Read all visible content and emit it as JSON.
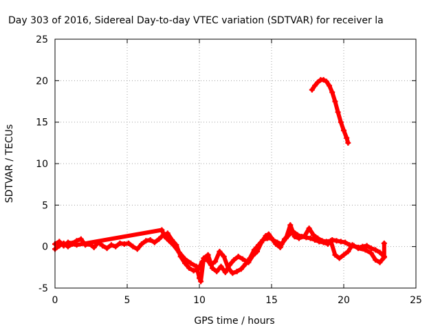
{
  "chart_data": {
    "type": "scatter",
    "title": "Day 303 of 2016, Sidereal Day-to-day VTEC variation (SDTVAR) for receiver la",
    "xlabel": "GPS time / hours",
    "ylabel": "SDTVAR / TECUs",
    "xlim": [
      0,
      25
    ],
    "ylim": [
      -5,
      25
    ],
    "xticks": [
      0,
      5,
      10,
      15,
      20,
      25
    ],
    "yticks": [
      -5,
      0,
      5,
      10,
      15,
      20,
      25
    ],
    "grid": true,
    "marker": "+",
    "series": [
      {
        "name": "main track",
        "color": "#ff0000",
        "points": [
          [
            0.0,
            0.3
          ],
          [
            0.3,
            0.6
          ],
          [
            0.6,
            0.1
          ],
          [
            0.9,
            0.5
          ],
          [
            1.2,
            0.4
          ],
          [
            1.5,
            0.7
          ],
          [
            1.8,
            0.9
          ],
          [
            2.1,
            0.2
          ],
          [
            2.4,
            0.3
          ],
          [
            2.7,
            -0.1
          ],
          [
            3.0,
            0.5
          ],
          [
            3.3,
            0.1
          ],
          [
            3.6,
            -0.2
          ],
          [
            3.9,
            0.2
          ],
          [
            4.2,
            0.0
          ],
          [
            4.5,
            0.4
          ],
          [
            4.8,
            0.3
          ],
          [
            5.1,
            0.4
          ],
          [
            5.4,
            0.0
          ],
          [
            5.7,
            -0.3
          ],
          [
            6.0,
            0.3
          ],
          [
            6.3,
            0.7
          ],
          [
            6.6,
            0.8
          ],
          [
            6.9,
            0.5
          ],
          [
            7.2,
            0.9
          ],
          [
            7.5,
            1.4
          ],
          [
            7.8,
            1.6
          ],
          [
            8.1,
            0.8
          ],
          [
            8.4,
            0.2
          ],
          [
            8.7,
            -1.2
          ],
          [
            9.0,
            -2.0
          ],
          [
            9.3,
            -2.6
          ],
          [
            9.6,
            -2.9
          ],
          [
            9.9,
            -2.8
          ],
          [
            10.2,
            -1.8
          ],
          [
            10.5,
            -1.5
          ],
          [
            10.8,
            -2.2
          ],
          [
            11.1,
            -1.8
          ],
          [
            11.4,
            -0.6
          ],
          [
            11.7,
            -1.2
          ],
          [
            12.0,
            -2.6
          ],
          [
            12.3,
            -3.2
          ],
          [
            12.6,
            -3.0
          ],
          [
            12.9,
            -2.7
          ],
          [
            13.2,
            -2.1
          ],
          [
            13.5,
            -1.4
          ],
          [
            13.8,
            -0.4
          ],
          [
            14.1,
            0.2
          ],
          [
            14.4,
            0.8
          ],
          [
            14.7,
            1.0
          ],
          [
            15.0,
            1.0
          ],
          [
            15.3,
            0.3
          ],
          [
            15.6,
            -0.1
          ],
          [
            15.9,
            0.9
          ],
          [
            16.2,
            1.4
          ],
          [
            16.5,
            1.8
          ],
          [
            16.8,
            1.4
          ],
          [
            17.1,
            1.2
          ],
          [
            17.4,
            1.1
          ],
          [
            17.7,
            1.0
          ],
          [
            18.0,
            0.8
          ],
          [
            18.3,
            0.6
          ],
          [
            18.6,
            0.5
          ],
          [
            18.9,
            0.3
          ],
          [
            19.2,
            0.8
          ],
          [
            19.5,
            0.7
          ],
          [
            19.8,
            0.6
          ],
          [
            20.1,
            0.5
          ],
          [
            20.4,
            0.2
          ],
          [
            20.7,
            0.1
          ],
          [
            21.0,
            -0.1
          ],
          [
            21.3,
            0.0
          ],
          [
            21.6,
            0.1
          ],
          [
            21.9,
            -0.2
          ],
          [
            22.2,
            -0.4
          ],
          [
            22.5,
            -0.7
          ],
          [
            22.8,
            -1.2
          ]
        ]
      },
      {
        "name": "secondary track",
        "color": "#ff0000",
        "points": [
          [
            0.0,
            -0.3
          ],
          [
            0.3,
            0.1
          ],
          [
            0.6,
            0.4
          ],
          [
            0.9,
            0.0
          ],
          [
            1.2,
            0.3
          ],
          [
            1.5,
            0.2
          ],
          [
            7.4,
            2.0
          ],
          [
            7.6,
            1.2
          ],
          [
            7.9,
            0.7
          ],
          [
            8.2,
            0.2
          ],
          [
            8.6,
            -0.7
          ],
          [
            9.0,
            -1.5
          ],
          [
            9.4,
            -2.0
          ],
          [
            9.8,
            -2.4
          ],
          [
            10.0,
            -3.8
          ],
          [
            10.1,
            -4.2
          ],
          [
            10.3,
            -1.4
          ],
          [
            10.6,
            -1.0
          ],
          [
            10.9,
            -2.6
          ],
          [
            11.2,
            -3.0
          ],
          [
            11.5,
            -2.4
          ],
          [
            11.8,
            -3.1
          ],
          [
            12.1,
            -2.2
          ],
          [
            12.4,
            -1.6
          ],
          [
            12.7,
            -1.2
          ],
          [
            13.0,
            -1.5
          ],
          [
            13.4,
            -1.9
          ],
          [
            13.7,
            -1.1
          ],
          [
            14.0,
            -0.6
          ],
          [
            14.3,
            0.5
          ],
          [
            14.6,
            1.3
          ],
          [
            14.8,
            1.5
          ],
          [
            15.1,
            0.8
          ],
          [
            15.4,
            0.5
          ],
          [
            15.7,
            0.3
          ],
          [
            16.0,
            1.0
          ],
          [
            16.3,
            2.6
          ],
          [
            16.6,
            1.2
          ],
          [
            16.9,
            1.0
          ],
          [
            17.3,
            1.3
          ],
          [
            17.6,
            2.2
          ],
          [
            17.9,
            1.4
          ],
          [
            18.2,
            1.0
          ],
          [
            18.5,
            0.7
          ],
          [
            18.8,
            0.6
          ],
          [
            19.1,
            0.7
          ],
          [
            19.4,
            -1.0
          ],
          [
            19.7,
            -1.4
          ],
          [
            20.0,
            -1.0
          ],
          [
            20.3,
            -0.6
          ],
          [
            20.6,
            0.2
          ],
          [
            21.0,
            -0.2
          ],
          [
            21.5,
            -0.4
          ],
          [
            21.9,
            -0.8
          ],
          [
            22.2,
            -1.6
          ],
          [
            22.5,
            -1.9
          ],
          [
            22.8,
            -1.3
          ],
          [
            22.8,
            0.4
          ]
        ]
      },
      {
        "name": "high arc",
        "color": "#ff0000",
        "points": [
          [
            17.8,
            18.9
          ],
          [
            18.0,
            19.4
          ],
          [
            18.2,
            19.8
          ],
          [
            18.4,
            20.1
          ],
          [
            18.6,
            20.1
          ],
          [
            18.8,
            19.9
          ],
          [
            19.0,
            19.4
          ],
          [
            19.2,
            18.6
          ],
          [
            19.4,
            17.5
          ],
          [
            19.6,
            16.2
          ],
          [
            19.8,
            15.0
          ],
          [
            20.0,
            14.0
          ],
          [
            20.2,
            13.1
          ],
          [
            20.3,
            12.5
          ]
        ]
      }
    ]
  }
}
